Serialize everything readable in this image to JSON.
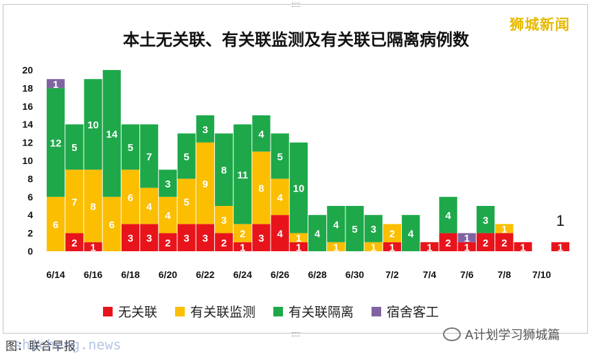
{
  "brand_logo": "狮城新闻",
  "footer": {
    "caption": "图：联合早报",
    "watermark": "shicheng.news",
    "wechat_account": "A计划学习狮城篇"
  },
  "chart_data": {
    "type": "bar",
    "stacked": true,
    "title": "本土无关联、有关联监测及有关联已隔离病例数",
    "xlabel": "",
    "ylabel": "",
    "ylim": [
      0,
      20
    ],
    "yticks": [
      0,
      2,
      4,
      6,
      8,
      10,
      12,
      14,
      16,
      18,
      20
    ],
    "legend_position": "bottom",
    "grid": false,
    "categories": [
      "6/14",
      "6/15",
      "6/16",
      "6/17",
      "6/18",
      "6/19",
      "6/20",
      "6/21",
      "6/22",
      "6/23",
      "6/24",
      "6/25",
      "6/26",
      "6/27",
      "6/28",
      "6/29",
      "6/30",
      "7/1",
      "7/2",
      "7/3",
      "7/4",
      "7/5",
      "7/6",
      "7/7",
      "7/8",
      "7/9",
      "7/10",
      "7/11"
    ],
    "xtick_labels": [
      "6/14",
      "6/16",
      "6/18",
      "6/20",
      "6/22",
      "6/24",
      "6/26",
      "6/28",
      "6/30",
      "7/2",
      "7/4",
      "7/6",
      "7/8",
      "7/10"
    ],
    "series": [
      {
        "name": "无关联",
        "color": "#e8141b",
        "values": [
          0,
          2,
          1,
          0,
          3,
          3,
          2,
          3,
          3,
          2,
          1,
          3,
          4,
          1,
          0,
          0,
          0,
          0,
          1,
          0,
          1,
          2,
          1,
          2,
          2,
          1,
          0,
          1
        ]
      },
      {
        "name": "有关联监测",
        "color": "#fbbe00",
        "values": [
          6,
          7,
          8,
          6,
          6,
          4,
          4,
          5,
          9,
          3,
          2,
          8,
          4,
          1,
          0,
          1,
          0,
          1,
          2,
          0,
          0,
          0,
          0,
          0,
          1,
          0,
          0,
          0
        ]
      },
      {
        "name": "有关联隔离",
        "color": "#1ea84a",
        "values": [
          12,
          5,
          10,
          14,
          5,
          7,
          3,
          5,
          3,
          8,
          11,
          4,
          5,
          10,
          4,
          4,
          5,
          3,
          0,
          4,
          0,
          4,
          0,
          3,
          0,
          0,
          0,
          0
        ]
      },
      {
        "name": "宿舍客工",
        "color": "#8064a2",
        "values": [
          1,
          0,
          0,
          0,
          0,
          0,
          0,
          0,
          0,
          0,
          0,
          0,
          0,
          0,
          0,
          0,
          0,
          0,
          0,
          0,
          0,
          0,
          1,
          0,
          0,
          0,
          0,
          0
        ]
      }
    ],
    "annotations": [
      {
        "category": "7/11",
        "text": "1"
      }
    ]
  }
}
